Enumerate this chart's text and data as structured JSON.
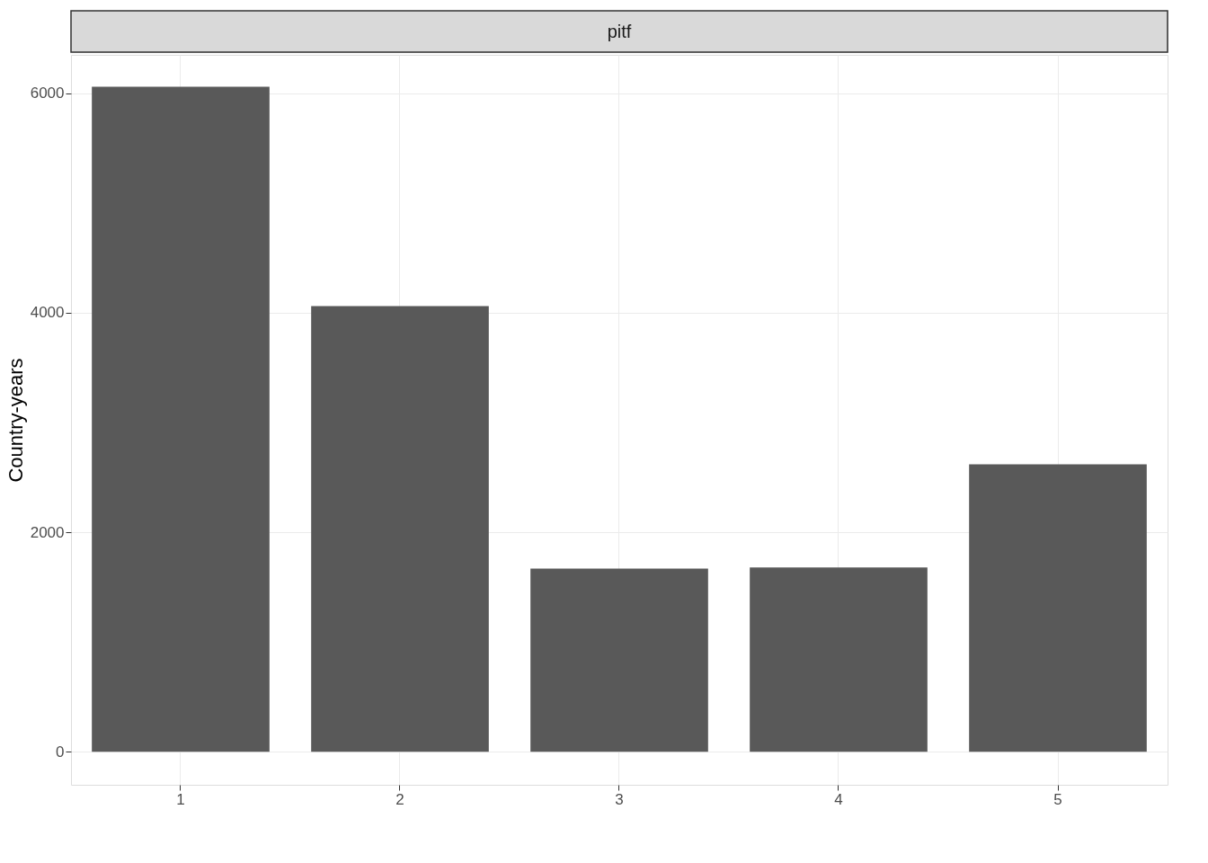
{
  "chart_data": {
    "type": "bar",
    "title": "pitf",
    "ylabel": "Country-years",
    "categories": [
      "1",
      "2",
      "3",
      "4",
      "5"
    ],
    "values": [
      6060,
      4060,
      1670,
      1680,
      2620
    ],
    "color": "#595959",
    "ylim": [
      -300,
      6350
    ],
    "yticks": [
      0,
      2000,
      4000,
      6000
    ],
    "grid": true
  }
}
